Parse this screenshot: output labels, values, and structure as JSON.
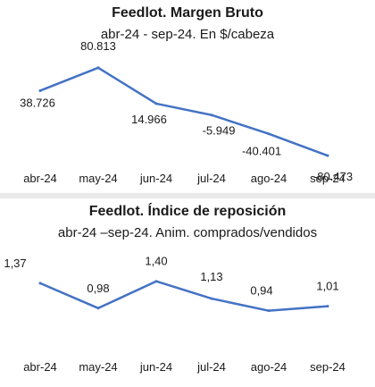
{
  "colors": {
    "line": "#4472c4",
    "text": "#1a1a1a",
    "divider": "#e9e9e9"
  },
  "chart_data": [
    {
      "type": "line",
      "title": "Feedlot. Margen Bruto",
      "subtitle": "abr-24 - sep-24. En $/cabeza",
      "categories": [
        "abr-24",
        "may-24",
        "jun-24",
        "jul-24",
        "ago-24",
        "sep-24"
      ],
      "values": [
        38726,
        80813,
        14966,
        -5949,
        -40401,
        -80473
      ],
      "data_labels": [
        "38.726",
        "80.813",
        "14.966",
        "-5.949",
        "-40.401",
        "-80.473"
      ],
      "ylim": [
        -95000,
        110000
      ],
      "grid": false,
      "legend": "none"
    },
    {
      "type": "line",
      "title": "Feedlot. Índice de reposición",
      "subtitle": "abr-24 –sep-24. Anim. comprados/vendidos",
      "categories": [
        "abr-24",
        "may-24",
        "jun-24",
        "jul-24",
        "ago-24",
        "sep-24"
      ],
      "values": [
        1.37,
        0.98,
        1.4,
        1.13,
        0.94,
        1.01
      ],
      "data_labels": [
        "1,37",
        "0,98",
        "1,40",
        "1,13",
        "0,94",
        "1,01"
      ],
      "ylim": [
        0.6,
        1.55
      ],
      "grid": false,
      "legend": "none"
    }
  ]
}
